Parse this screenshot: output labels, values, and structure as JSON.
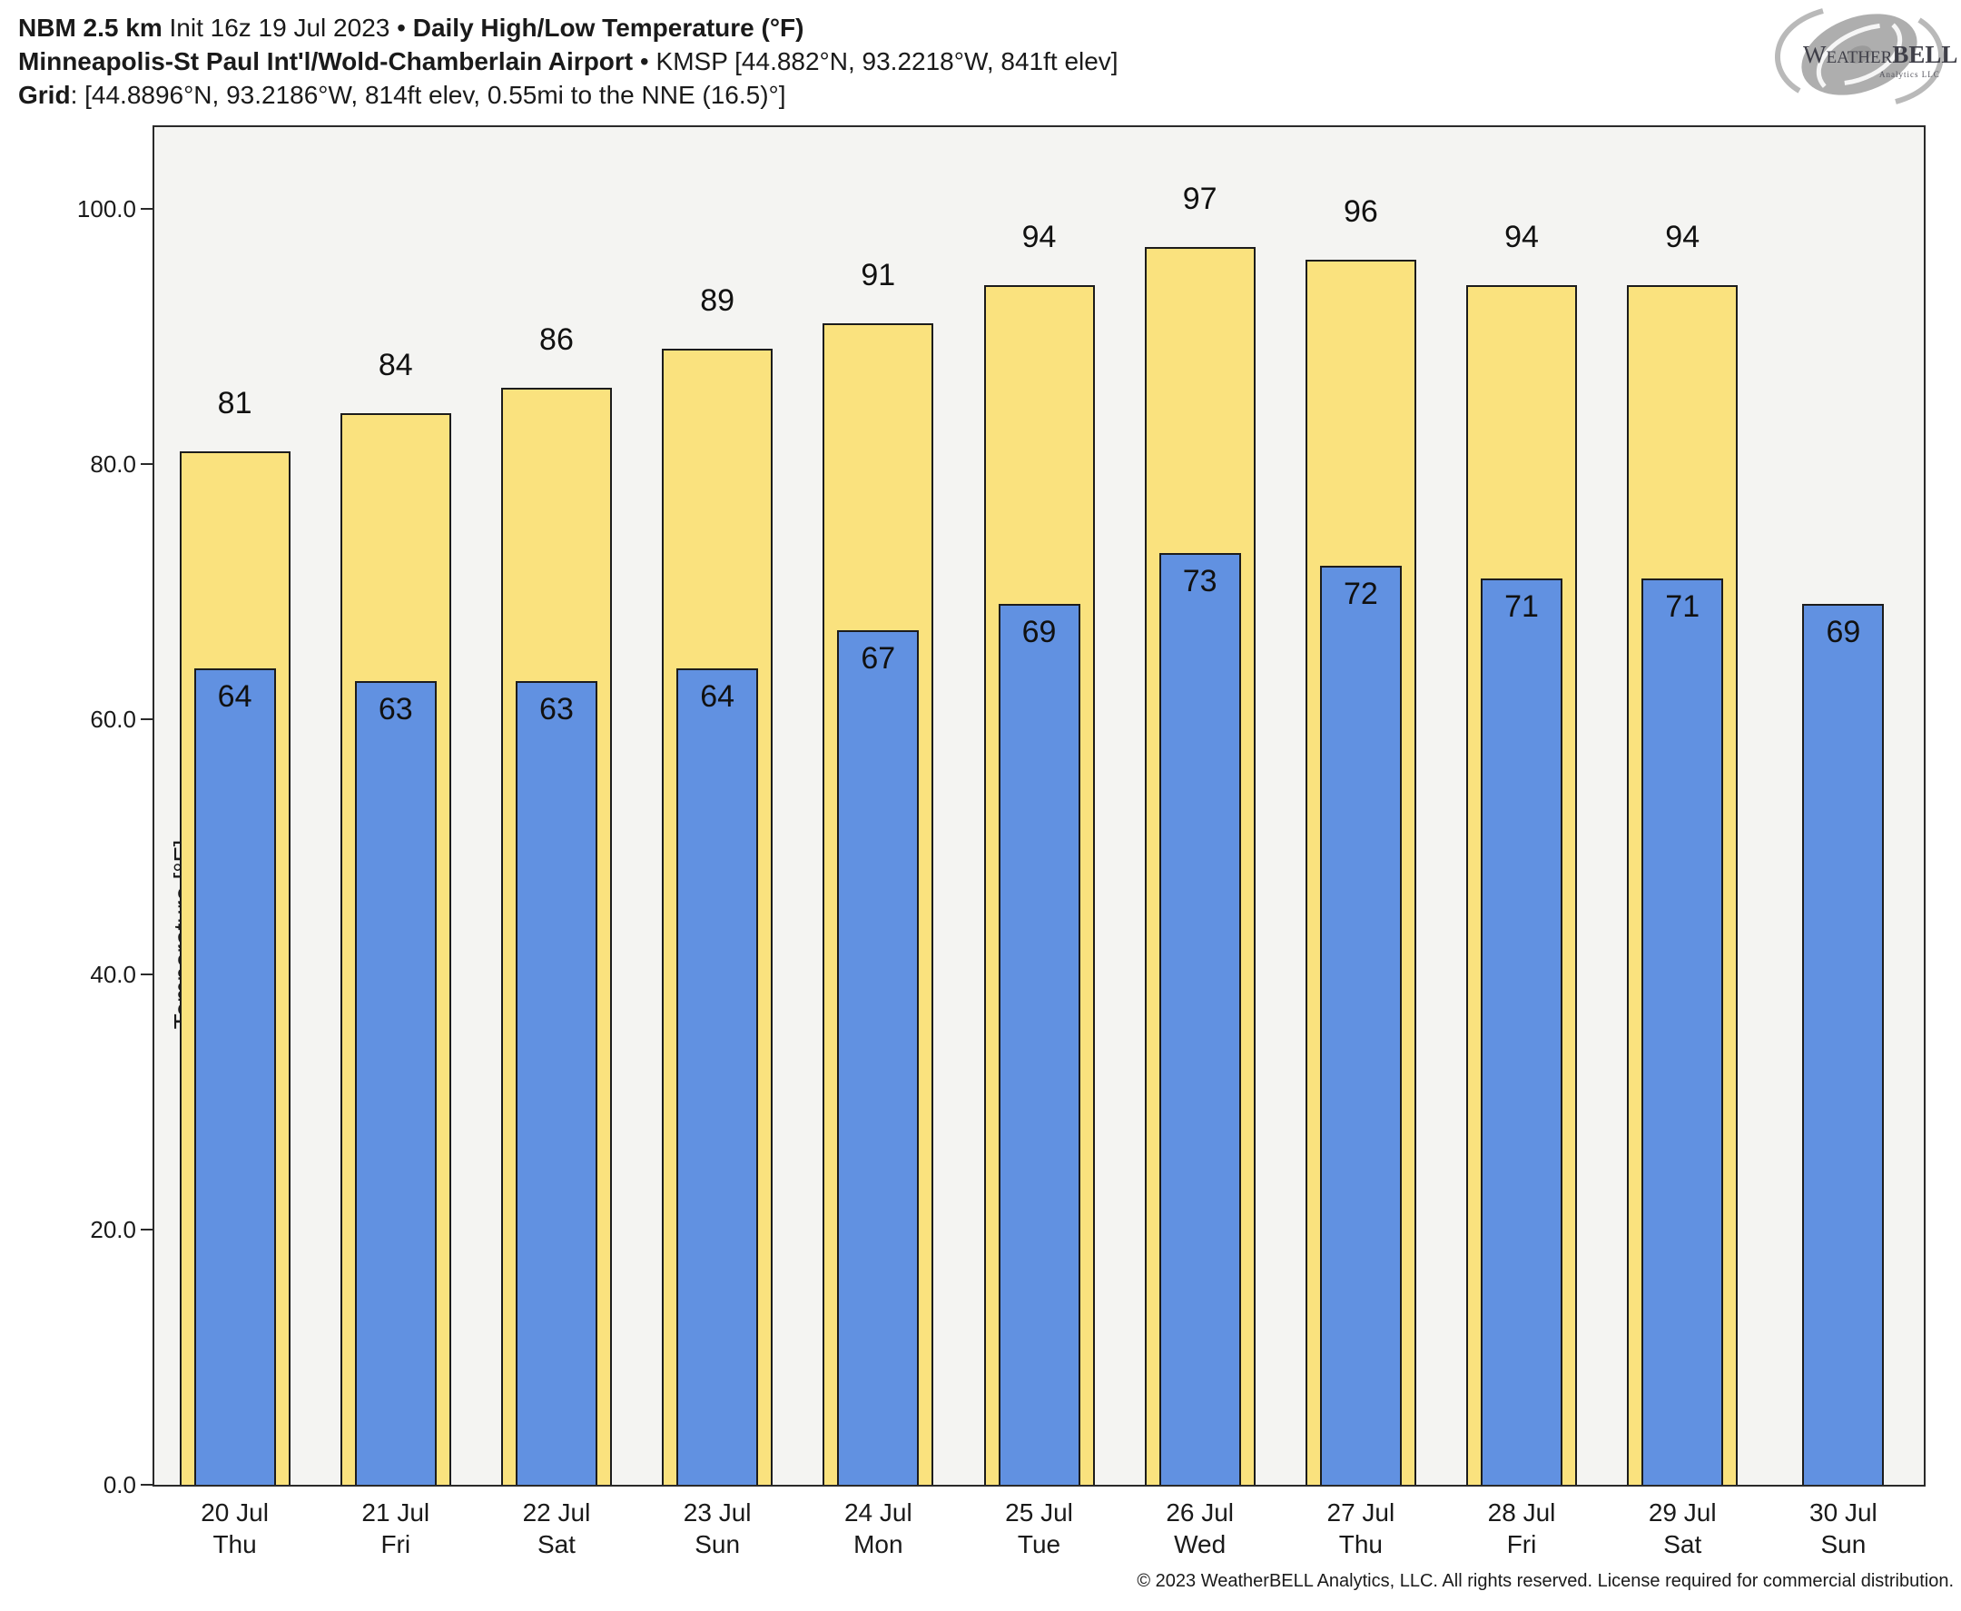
{
  "header": {
    "line1": {
      "model": "NBM 2.5 km",
      "init": "Init 16z 19 Jul 2023",
      "separator": "•",
      "product": "Daily High/Low Temperature (°F)"
    },
    "line2": {
      "station_name": "Minneapolis-St Paul Int'l/Wold-Chamberlain Airport",
      "separator": "•",
      "station_meta": "KMSP [44.882°N, 93.2218°W, 841ft elev]"
    },
    "line3": {
      "label": "Grid",
      "value": ": [44.8896°N, 93.2186°W, 814ft elev, 0.55mi to the NNE (16.5)°]"
    }
  },
  "logo": {
    "part1": "Weather",
    "part2": "BELL",
    "subtitle": "Analytics LLC"
  },
  "chart_data": {
    "type": "bar",
    "title": "NBM 2.5 km Daily High/Low Temperature (°F) — KMSP",
    "ylabel": "Temperature [°F]",
    "ylim": [
      0,
      106.4
    ],
    "yticks": [
      0,
      20,
      40,
      60,
      80,
      100
    ],
    "ytick_labels": [
      "0.0",
      "20.0",
      "40.0",
      "60.0",
      "80.0",
      "100.0"
    ],
    "grid": false,
    "legend_position": "none",
    "plot_background": "#f4f4f2",
    "categories": [
      {
        "date": "20 Jul",
        "weekday": "Thu"
      },
      {
        "date": "21 Jul",
        "weekday": "Fri"
      },
      {
        "date": "22 Jul",
        "weekday": "Sat"
      },
      {
        "date": "23 Jul",
        "weekday": "Sun"
      },
      {
        "date": "24 Jul",
        "weekday": "Mon"
      },
      {
        "date": "25 Jul",
        "weekday": "Tue"
      },
      {
        "date": "26 Jul",
        "weekday": "Wed"
      },
      {
        "date": "27 Jul",
        "weekday": "Thu"
      },
      {
        "date": "28 Jul",
        "weekday": "Fri"
      },
      {
        "date": "29 Jul",
        "weekday": "Sat"
      },
      {
        "date": "30 Jul",
        "weekday": "Sun"
      }
    ],
    "series": [
      {
        "name": "Daily High",
        "color": "#FAE27E",
        "values": [
          81,
          84,
          86,
          89,
          91,
          94,
          97,
          96,
          94,
          94,
          null
        ]
      },
      {
        "name": "Daily Low",
        "color": "#6191E1",
        "values": [
          64,
          63,
          63,
          64,
          67,
          69,
          73,
          72,
          71,
          71,
          69
        ]
      }
    ]
  },
  "footer": {
    "copyright": "© 2023 WeatherBELL Analytics, LLC. All rights reserved. License required for commercial distribution."
  }
}
